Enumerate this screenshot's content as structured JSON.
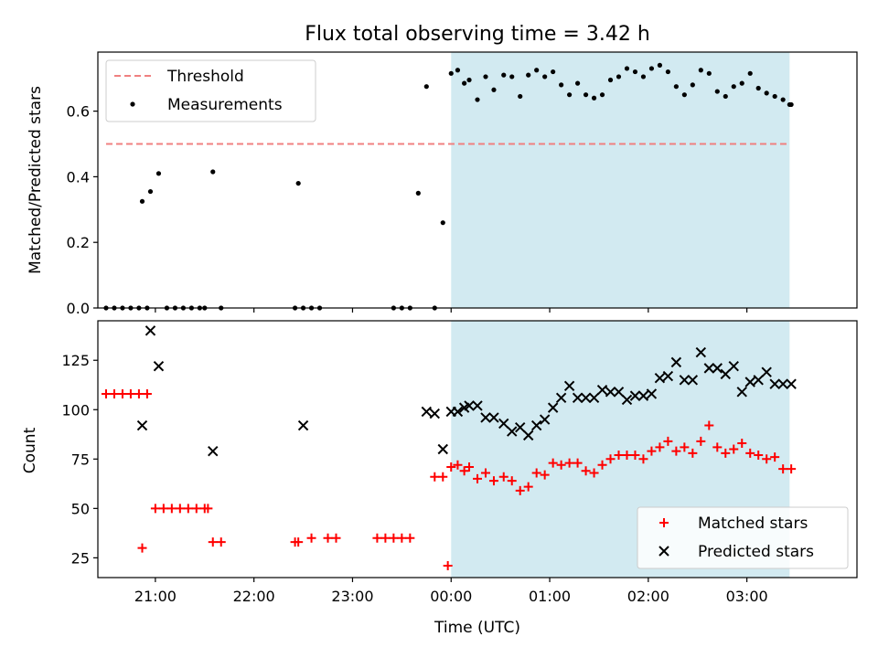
{
  "chart_data": [
    {
      "type": "scatter",
      "title": "Flux total observing time = 3.42 h",
      "xlabel": "",
      "ylabel": "Matched/Predicted stars",
      "xlim": [
        "20:25",
        "04:07"
      ],
      "ylim": [
        0,
        0.78
      ],
      "yticks": [
        "0.0",
        "0.2",
        "0.4",
        "0.6"
      ],
      "grid": false,
      "legend_placement": "upper-left",
      "shaded_span": {
        "from": "00:00",
        "to": "03:26",
        "color": "#add8e6"
      },
      "threshold": {
        "name": "Threshold",
        "value": 0.5,
        "x_from": "20:30",
        "x_to": "03:26",
        "color": "#f08080"
      },
      "series": [
        {
          "name": "Measurements",
          "color": "#000000",
          "x": [
            "20:30",
            "20:35",
            "20:40",
            "20:45",
            "20:50",
            "20:55",
            "20:52",
            "20:57",
            "21:02",
            "21:07",
            "21:12",
            "21:17",
            "21:22",
            "21:27",
            "21:30",
            "21:35",
            "21:40",
            "22:25",
            "22:27",
            "22:30",
            "22:35",
            "22:40",
            "23:25",
            "23:30",
            "23:35",
            "23:40",
            "23:45",
            "23:50",
            "23:55",
            "00:00",
            "00:04",
            "00:08",
            "00:11",
            "00:16",
            "00:21",
            "00:26",
            "00:32",
            "00:37",
            "00:42",
            "00:47",
            "00:52",
            "00:57",
            "01:02",
            "01:07",
            "01:12",
            "01:17",
            "01:22",
            "01:27",
            "01:32",
            "01:37",
            "01:42",
            "01:47",
            "01:52",
            "01:57",
            "02:02",
            "02:07",
            "02:12",
            "02:17",
            "02:22",
            "02:27",
            "02:32",
            "02:37",
            "02:42",
            "02:47",
            "02:52",
            "02:57",
            "03:02",
            "03:07",
            "03:12",
            "03:17",
            "03:22",
            "03:27",
            "03:26"
          ],
          "y": [
            0,
            0,
            0,
            0,
            0,
            0,
            0.325,
            0.355,
            0.41,
            0,
            0,
            0,
            0,
            0,
            0,
            0.415,
            0,
            0,
            0.38,
            0,
            0,
            0,
            0,
            0,
            0,
            0.35,
            0.675,
            0,
            0.26,
            0.715,
            0.725,
            0.685,
            0.695,
            0.635,
            0.705,
            0.665,
            0.71,
            0.705,
            0.645,
            0.71,
            0.725,
            0.705,
            0.72,
            0.68,
            0.65,
            0.685,
            0.65,
            0.64,
            0.65,
            0.695,
            0.705,
            0.73,
            0.72,
            0.705,
            0.73,
            0.74,
            0.72,
            0.675,
            0.65,
            0.68,
            0.725,
            0.715,
            0.66,
            0.645,
            0.675,
            0.685,
            0.715,
            0.67,
            0.655,
            0.645,
            0.635,
            0.62,
            0.62
          ]
        }
      ]
    },
    {
      "type": "scatter",
      "title": "",
      "xlabel": "Time (UTC)",
      "ylabel": "Count",
      "xlim": [
        "20:25",
        "04:07"
      ],
      "ylim": [
        15,
        145
      ],
      "xticks": [
        "21:00",
        "22:00",
        "23:00",
        "00:00",
        "01:00",
        "02:00",
        "03:00"
      ],
      "yticks": [
        "25",
        "50",
        "75",
        "100",
        "125"
      ],
      "grid": false,
      "legend_placement": "lower-right",
      "shaded_span": {
        "from": "00:00",
        "to": "03:26",
        "color": "#add8e6"
      },
      "series": [
        {
          "name": "Matched stars",
          "marker": "+",
          "color": "#ff0000",
          "x": [
            "20:30",
            "20:35",
            "20:40",
            "20:45",
            "20:50",
            "20:55",
            "20:52",
            "21:00",
            "21:05",
            "21:10",
            "21:15",
            "21:20",
            "21:25",
            "21:30",
            "21:32",
            "21:35",
            "21:40",
            "22:25",
            "22:27",
            "22:35",
            "22:45",
            "22:50",
            "23:15",
            "23:20",
            "23:25",
            "23:30",
            "23:35",
            "23:50",
            "23:55",
            "23:58",
            "00:00",
            "00:04",
            "00:08",
            "00:11",
            "00:16",
            "00:21",
            "00:26",
            "00:32",
            "00:37",
            "00:42",
            "00:47",
            "00:52",
            "00:57",
            "01:02",
            "01:07",
            "01:12",
            "01:17",
            "01:22",
            "01:27",
            "01:32",
            "01:37",
            "01:42",
            "01:47",
            "01:52",
            "01:57",
            "02:02",
            "02:07",
            "02:12",
            "02:17",
            "02:22",
            "02:27",
            "02:32",
            "02:37",
            "02:42",
            "02:47",
            "02:52",
            "02:57",
            "03:02",
            "03:07",
            "03:12",
            "03:17",
            "03:22",
            "03:27"
          ],
          "y": [
            108,
            108,
            108,
            108,
            108,
            108,
            30,
            50,
            50,
            50,
            50,
            50,
            50,
            50,
            50,
            33,
            33,
            33,
            33,
            35,
            35,
            35,
            35,
            35,
            35,
            35,
            35,
            66,
            66,
            21,
            71,
            72,
            69,
            71,
            65,
            68,
            64,
            66,
            64,
            59,
            61,
            68,
            67,
            73,
            72,
            73,
            73,
            69,
            68,
            72,
            75,
            77,
            77,
            77,
            75,
            79,
            81,
            84,
            79,
            81,
            78,
            84,
            92,
            81,
            78,
            80,
            83,
            78,
            77,
            75,
            76,
            70,
            70
          ]
        },
        {
          "name": "Predicted stars",
          "marker": "x",
          "color": "#000000",
          "x": [
            "20:52",
            "20:57",
            "21:02",
            "21:35",
            "22:30",
            "23:45",
            "23:50",
            "23:55",
            "00:00",
            "00:04",
            "00:08",
            "00:11",
            "00:16",
            "00:21",
            "00:26",
            "00:32",
            "00:37",
            "00:42",
            "00:47",
            "00:52",
            "00:57",
            "01:02",
            "01:07",
            "01:12",
            "01:17",
            "01:22",
            "01:27",
            "01:32",
            "01:37",
            "01:42",
            "01:47",
            "01:52",
            "01:57",
            "02:02",
            "02:07",
            "02:12",
            "02:17",
            "02:22",
            "02:27",
            "02:32",
            "02:37",
            "02:42",
            "02:47",
            "02:52",
            "02:57",
            "03:02",
            "03:07",
            "03:12",
            "03:17",
            "03:22",
            "03:27"
          ],
          "y": [
            92,
            140,
            122,
            79,
            92,
            99,
            98,
            80,
            99,
            99,
            101,
            102,
            102,
            96,
            96,
            93,
            89,
            91,
            87,
            92,
            95,
            101,
            106,
            112,
            106,
            106,
            106,
            110,
            109,
            109,
            105,
            107,
            107,
            108,
            116,
            117,
            124,
            115,
            115,
            129,
            121,
            121,
            118,
            122,
            109,
            114,
            115,
            119,
            113,
            113,
            113
          ]
        }
      ]
    }
  ]
}
